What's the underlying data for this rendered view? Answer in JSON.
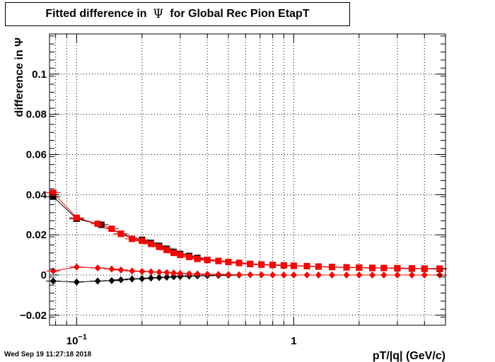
{
  "title": {
    "prefix": "Fitted difference in",
    "symbol": "Ψ",
    "suffix": "for Global Rec Pion EtapT"
  },
  "timestamp": "Wed Sep 19 11:27:18 2018",
  "colors": {
    "series_black": "#000000",
    "series_red": "#ff0000",
    "grid": "#000000",
    "frame": "#000000"
  },
  "chart_data": {
    "type": "scatter",
    "title": "Fitted difference in Ψ for Global Rec Pion EtapT",
    "xlabel": "pT/|q| (GeV/c)",
    "ylabel": "difference in Ψ",
    "xscale": "log",
    "xlim": [
      0.075,
      5.0
    ],
    "ylim": [
      -0.025,
      0.12
    ],
    "grid": true,
    "x_ticks": [
      {
        "value": 0.1,
        "label": "10",
        "exponent": "−1"
      },
      {
        "value": 1,
        "label": "1",
        "exponent": ""
      }
    ],
    "y_ticks": [
      {
        "value": -0.02,
        "label": "−0.02"
      },
      {
        "value": 0,
        "label": "0"
      },
      {
        "value": 0.02,
        "label": "0.02"
      },
      {
        "value": 0.04,
        "label": "0.04"
      },
      {
        "value": 0.06,
        "label": "0.06"
      },
      {
        "value": 0.08,
        "label": "0.08"
      },
      {
        "value": 0.1,
        "label": "0.1"
      }
    ],
    "series": [
      {
        "color": "#000000",
        "marker": "square",
        "x": [
          0.078,
          0.1,
          0.13,
          0.16,
          0.2,
          0.22,
          0.24,
          0.26,
          0.28,
          0.3,
          0.33,
          0.36,
          0.4,
          0.45,
          0.5,
          0.56,
          0.63,
          0.71,
          0.8,
          0.9,
          1.0,
          1.15,
          1.3,
          1.5,
          1.75,
          2.0,
          2.3,
          2.6,
          3.0,
          3.5,
          4.0,
          4.7
        ],
        "y": [
          0.039,
          0.028,
          0.025,
          0.0205,
          0.0175,
          0.016,
          0.0145,
          0.013,
          0.0115,
          0.0105,
          0.0095,
          0.0085,
          0.0075,
          0.007,
          0.0065,
          0.006,
          0.0055,
          0.0052,
          0.005,
          0.0048,
          0.0046,
          0.0044,
          0.0042,
          0.004,
          0.0038,
          0.0037,
          0.0035,
          0.0035,
          0.0033,
          0.0032,
          0.0031,
          0.003
        ]
      },
      {
        "color": "#ff0000",
        "marker": "square",
        "x": [
          0.078,
          0.1,
          0.125,
          0.145,
          0.16,
          0.18,
          0.2,
          0.22,
          0.24,
          0.26,
          0.28,
          0.3,
          0.33,
          0.36,
          0.4,
          0.45,
          0.5,
          0.56,
          0.63,
          0.71,
          0.8,
          0.9,
          1.0,
          1.15,
          1.3,
          1.5,
          1.75,
          2.0,
          2.3,
          2.6,
          3.0,
          3.5,
          4.0,
          4.7
        ],
        "y": [
          0.041,
          0.0285,
          0.0255,
          0.023,
          0.0205,
          0.018,
          0.017,
          0.0155,
          0.014,
          0.0125,
          0.011,
          0.01,
          0.009,
          0.008,
          0.0075,
          0.007,
          0.0065,
          0.006,
          0.0055,
          0.0052,
          0.005,
          0.0048,
          0.0046,
          0.0044,
          0.0042,
          0.004,
          0.0038,
          0.0037,
          0.0036,
          0.0035,
          0.0034,
          0.0033,
          0.0032,
          0.0032
        ]
      },
      {
        "color": "#000000",
        "marker": "diamond",
        "x": [
          0.078,
          0.1,
          0.125,
          0.145,
          0.16,
          0.18,
          0.2,
          0.22,
          0.24,
          0.26,
          0.28,
          0.3,
          0.33,
          0.36,
          0.4,
          0.45,
          0.5,
          0.56
        ],
        "y": [
          -0.003,
          -0.0035,
          -0.003,
          -0.0028,
          -0.0024,
          -0.002,
          -0.0018,
          -0.0015,
          -0.0013,
          -0.0011,
          -0.0009,
          -0.0007,
          -0.0005,
          -0.0004,
          -0.0003,
          -0.0002,
          -0.0001,
          0.0
        ]
      },
      {
        "color": "#ff0000",
        "marker": "diamond",
        "x": [
          0.078,
          0.1,
          0.125,
          0.145,
          0.16,
          0.18,
          0.2,
          0.22,
          0.24,
          0.26,
          0.28,
          0.3,
          0.33,
          0.36,
          0.4,
          0.45,
          0.5,
          0.56,
          0.63,
          0.71,
          0.8,
          0.9,
          1.0,
          1.15,
          1.3,
          1.5,
          1.75,
          2.0,
          2.3,
          2.6,
          3.0,
          3.5,
          4.0,
          4.7
        ],
        "y": [
          0.002,
          0.004,
          0.0035,
          0.003,
          0.0025,
          0.002,
          0.0018,
          0.0016,
          0.0014,
          0.0012,
          0.001,
          0.0008,
          0.0006,
          0.0005,
          0.0004,
          0.0003,
          0.0002,
          0.0001,
          0.0001,
          0.0001,
          0.0,
          0.0,
          0.0,
          0.0,
          0.0,
          0.0,
          0.0,
          0.0,
          0.0,
          0.0,
          0.0,
          0.0,
          0.0,
          0.0
        ]
      }
    ]
  }
}
